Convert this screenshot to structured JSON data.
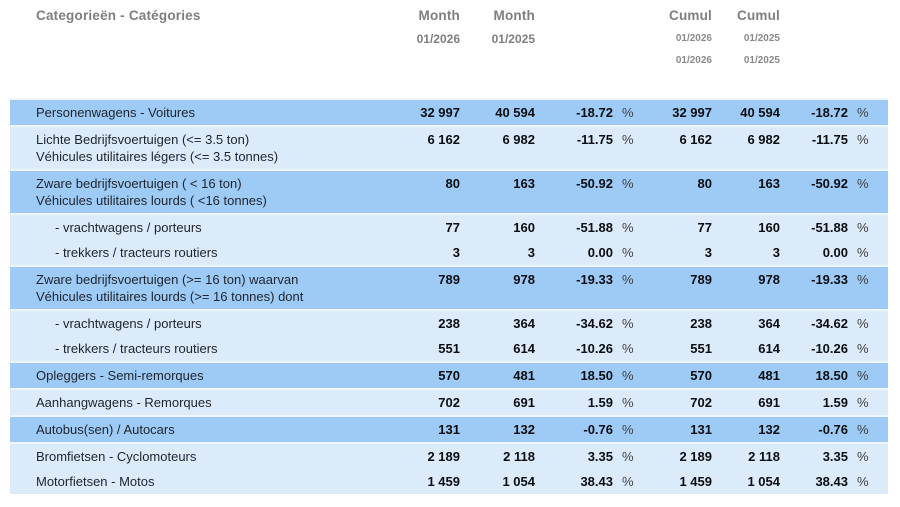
{
  "colors": {
    "row_dark": "#9ecbf5",
    "row_light": "#dcebfa",
    "header_text": "#7e7e7e",
    "value_text": "#0a0d12",
    "label_text": "#1e242b"
  },
  "percent_symbol": "%",
  "header": {
    "category_label": "Categorieën - Catégories",
    "month_2026": {
      "title": "Month",
      "date": "01/2026"
    },
    "month_2025": {
      "title": "Month",
      "date": "01/2025"
    },
    "cumul_2026": {
      "title": "Cumul",
      "dates": [
        "01/2026",
        "01/2026"
      ]
    },
    "cumul_2025": {
      "title": "Cumul",
      "dates": [
        "01/2025",
        "01/2025"
      ]
    }
  },
  "rows": [
    {
      "label": "Personenwagens - Voitures",
      "shade": "dark",
      "sub": false,
      "merge": false,
      "m2026": "32 997",
      "m2025": "40 594",
      "pct_month": "-18.72",
      "c2026": "32 997",
      "c2025": "40 594",
      "pct_cumul": "-18.72"
    },
    {
      "label": "Lichte Bedrijfsvoertuigen (<= 3.5 ton)\nVéhicules utilitaires légers (<= 3.5 tonnes)",
      "shade": "light",
      "sub": false,
      "merge": false,
      "m2026": "6 162",
      "m2025": "6 982",
      "pct_month": "-11.75",
      "c2026": "6 162",
      "c2025": "6 982",
      "pct_cumul": "-11.75"
    },
    {
      "label": "Zware bedrijfsvoertuigen ( < 16 ton)\nVéhicules utilitaires lourds ( <16 tonnes)",
      "shade": "dark",
      "sub": false,
      "merge": false,
      "m2026": "80",
      "m2025": "163",
      "pct_month": "-50.92",
      "c2026": "80",
      "c2025": "163",
      "pct_cumul": "-50.92"
    },
    {
      "label": "- vrachtwagens / porteurs",
      "shade": "light",
      "sub": true,
      "merge": false,
      "m2026": "77",
      "m2025": "160",
      "pct_month": "-51.88",
      "c2026": "77",
      "c2025": "160",
      "pct_cumul": "-51.88"
    },
    {
      "label": "- trekkers / tracteurs routiers",
      "shade": "light",
      "sub": true,
      "merge": true,
      "m2026": "3",
      "m2025": "3",
      "pct_month": "0.00",
      "c2026": "3",
      "c2025": "3",
      "pct_cumul": "0.00"
    },
    {
      "label": "Zware bedrijfsvoertuigen (>= 16 ton) waarvan\nVéhicules utilitaires lourds (>= 16 tonnes) dont",
      "shade": "dark",
      "sub": false,
      "merge": false,
      "m2026": "789",
      "m2025": "978",
      "pct_month": "-19.33",
      "c2026": "789",
      "c2025": "978",
      "pct_cumul": "-19.33"
    },
    {
      "label": "- vrachtwagens / porteurs",
      "shade": "light",
      "sub": true,
      "merge": false,
      "m2026": "238",
      "m2025": "364",
      "pct_month": "-34.62",
      "c2026": "238",
      "c2025": "364",
      "pct_cumul": "-34.62"
    },
    {
      "label": "- trekkers / tracteurs routiers",
      "shade": "light",
      "sub": true,
      "merge": true,
      "m2026": "551",
      "m2025": "614",
      "pct_month": "-10.26",
      "c2026": "551",
      "c2025": "614",
      "pct_cumul": "-10.26"
    },
    {
      "label": "Opleggers - Semi-remorques",
      "shade": "dark",
      "sub": false,
      "merge": false,
      "m2026": "570",
      "m2025": "481",
      "pct_month": "18.50",
      "c2026": "570",
      "c2025": "481",
      "pct_cumul": "18.50"
    },
    {
      "label": "Aanhangwagens - Remorques",
      "shade": "light",
      "sub": false,
      "merge": false,
      "m2026": "702",
      "m2025": "691",
      "pct_month": "1.59",
      "c2026": "702",
      "c2025": "691",
      "pct_cumul": "1.59"
    },
    {
      "label": "Autobus(sen) / Autocars",
      "shade": "dark",
      "sub": false,
      "merge": false,
      "m2026": "131",
      "m2025": "132",
      "pct_month": "-0.76",
      "c2026": "131",
      "c2025": "132",
      "pct_cumul": "-0.76"
    },
    {
      "label": "Bromfietsen - Cyclomoteurs",
      "shade": "light",
      "sub": false,
      "merge": false,
      "m2026": "2 189",
      "m2025": "2 118",
      "pct_month": "3.35",
      "c2026": "2 189",
      "c2025": "2 118",
      "pct_cumul": "3.35"
    },
    {
      "label": "Motorfietsen - Motos",
      "shade": "light",
      "sub": false,
      "merge": true,
      "m2026": "1 459",
      "m2025": "1 054",
      "pct_month": "38.43",
      "c2026": "1 459",
      "c2025": "1 054",
      "pct_cumul": "38.43"
    }
  ]
}
